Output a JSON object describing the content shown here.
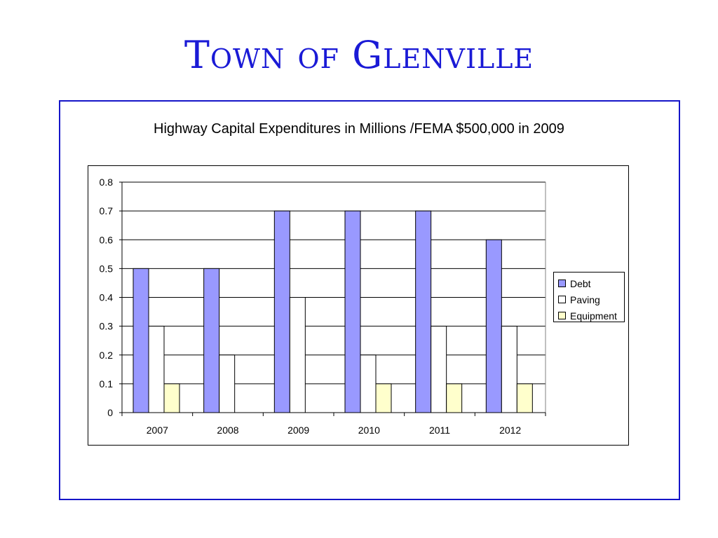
{
  "slide": {
    "title": "Town of Glenville"
  },
  "chart_data": {
    "type": "bar",
    "title": "Highway Capital Expenditures in Millions /FEMA $500,000 in 2009",
    "xlabel": "",
    "ylabel": "",
    "categories": [
      "2007",
      "2008",
      "2009",
      "2010",
      "2011",
      "2012"
    ],
    "series": [
      {
        "name": "Debt",
        "color": "#9999ff",
        "values": [
          0.5,
          0.5,
          0.7,
          0.7,
          0.7,
          0.6
        ]
      },
      {
        "name": "Paving",
        "color": "#ffffff",
        "values": [
          0.3,
          0.2,
          0.4,
          0.2,
          0.3,
          0.3
        ]
      },
      {
        "name": "Equipment",
        "color": "#ffffcc",
        "values": [
          0.1,
          0,
          0,
          0.1,
          0.1,
          0.1
        ]
      }
    ],
    "ylim": [
      0,
      0.8
    ],
    "yticks": [
      "0",
      "0.1",
      "0.2",
      "0.3",
      "0.4",
      "0.5",
      "0.6",
      "0.7",
      "0.8"
    ],
    "grid": true,
    "legend": "right"
  }
}
